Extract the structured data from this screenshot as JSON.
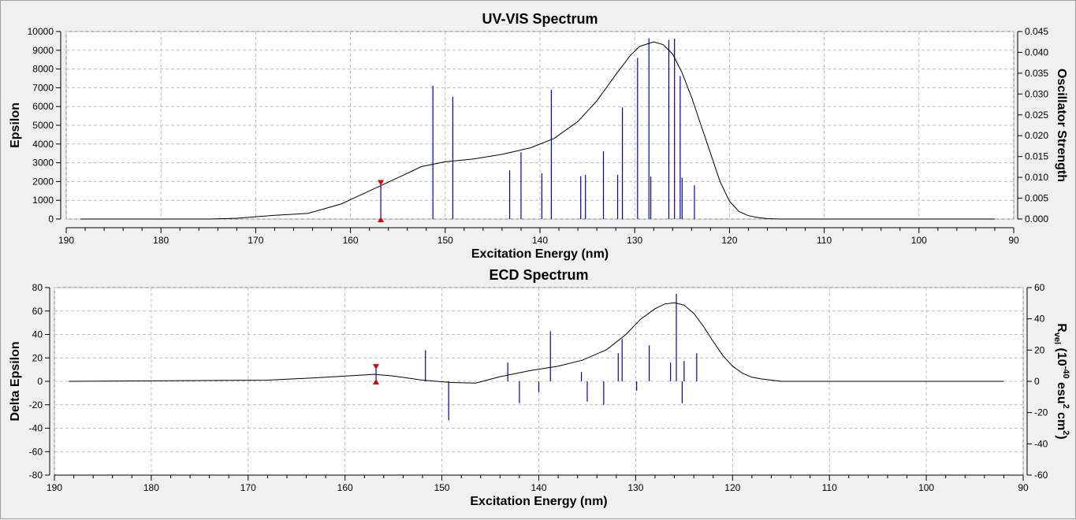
{
  "chart_data": [
    {
      "type": "line",
      "title": "UV-VIS Spectrum",
      "xlabel": "Excitation Energy (nm)",
      "ylabel": "Epsilon",
      "y2label": "Oscillator Strength",
      "xlim": [
        190,
        90
      ],
      "ylim": [
        0,
        10000
      ],
      "y2lim": [
        0,
        0.045
      ],
      "xticks": [
        190,
        180,
        170,
        160,
        150,
        140,
        130,
        120,
        110,
        100,
        90
      ],
      "yticks": [
        0,
        1000,
        2000,
        3000,
        4000,
        5000,
        6000,
        7000,
        8000,
        9000,
        10000
      ],
      "y2ticks": [
        "0.000",
        "0.005",
        "0.010",
        "0.015",
        "0.020",
        "0.025",
        "0.030",
        "0.035",
        "0.040",
        "0.045"
      ],
      "curve": {
        "x": [
          188.5,
          180,
          175,
          172,
          168,
          164.5,
          161,
          158,
          155,
          152.5,
          150,
          147,
          144,
          141,
          138.5,
          136,
          134,
          132,
          130.5,
          129.5,
          128,
          127,
          126,
          125,
          124,
          123,
          122,
          121,
          120,
          119,
          118,
          117,
          116,
          114.5,
          110,
          100,
          92
        ],
        "y": [
          0,
          0,
          0,
          40,
          200,
          300,
          800,
          1500,
          2200,
          2800,
          3050,
          3200,
          3450,
          3800,
          4300,
          5200,
          6300,
          7700,
          8700,
          9200,
          9450,
          9300,
          8800,
          7800,
          6500,
          5000,
          3500,
          2000,
          950,
          400,
          180,
          80,
          20,
          0,
          0,
          0,
          0
        ]
      },
      "sticks": {
        "x": [
          151.3,
          149.2,
          143.2,
          142.0,
          139.8,
          138.8,
          135.7,
          135.2,
          133.3,
          131.8,
          131.3,
          129.7,
          128.5,
          128.3,
          126.4,
          125.8,
          125.2,
          125.0,
          123.7
        ],
        "f": [
          0.032,
          0.0293,
          0.0117,
          0.016,
          0.011,
          0.031,
          0.0103,
          0.0106,
          0.0163,
          0.0106,
          0.0268,
          0.0387,
          0.0434,
          0.0102,
          0.043,
          0.0433,
          0.0343,
          0.0099,
          0.0081
        ]
      },
      "marker": {
        "x": 156.8,
        "f": 0.0086
      }
    },
    {
      "type": "line",
      "title": "ECD Spectrum",
      "xlabel": "Excitation Energy (nm)",
      "ylabel": "Delta Epsilon",
      "y2label": "Rvel (10-40 esu2 cm2)",
      "xlim": [
        190,
        90
      ],
      "ylim": [
        -80,
        80
      ],
      "y2lim": [
        -60,
        60
      ],
      "xticks": [
        190,
        180,
        170,
        160,
        150,
        140,
        130,
        120,
        110,
        100,
        90
      ],
      "yticks": [
        -80,
        -60,
        -40,
        -20,
        0,
        20,
        40,
        60,
        80
      ],
      "y2ticks": [
        -60,
        -40,
        -20,
        0,
        20,
        40,
        60
      ],
      "curve": {
        "x": [
          188.5,
          178,
          168,
          163,
          159,
          157,
          155,
          152,
          149,
          146.5,
          144,
          141,
          138,
          135.5,
          133,
          131,
          129.5,
          128,
          127,
          126,
          125,
          124,
          123,
          122,
          121,
          120,
          119,
          118,
          117,
          115,
          105,
          92
        ],
        "y": [
          0,
          0.5,
          1,
          3,
          5,
          6,
          4.5,
          1,
          -1,
          -1.5,
          4,
          9,
          13,
          18,
          27,
          40,
          53,
          62,
          66,
          67,
          65,
          58,
          47,
          34,
          22,
          13,
          7,
          3.5,
          2,
          0,
          0,
          0
        ]
      },
      "sticks": {
        "x": [
          151.7,
          149.3,
          143.2,
          142.0,
          140.0,
          138.8,
          135.6,
          135.0,
          133.3,
          131.8,
          131.4,
          129.9,
          128.6,
          126.4,
          125.8,
          125.2,
          125.0,
          123.7
        ],
        "r": [
          20,
          -25,
          12,
          -14,
          -7,
          32,
          6,
          -13,
          -15,
          18,
          27,
          -6,
          23,
          12,
          56,
          -14,
          13,
          18
        ]
      },
      "marker": {
        "x": 156.8,
        "r": 9
      }
    }
  ]
}
